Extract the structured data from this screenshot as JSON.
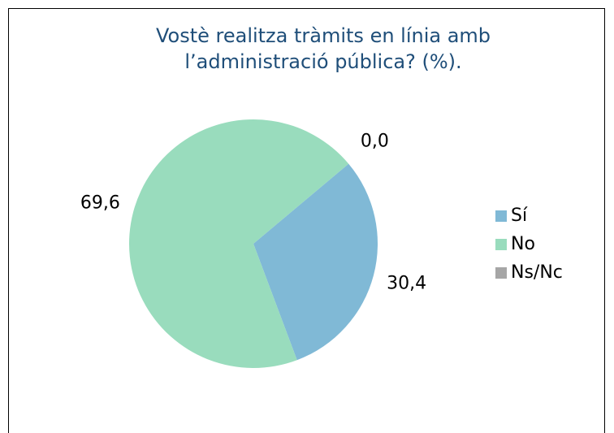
{
  "chart_data": {
    "type": "pie",
    "title": [
      "Vostè realitza tràmits en línia amb",
      "l’administració pública? (%)."
    ],
    "categories": [
      "Sí",
      "No",
      "Ns/Nc"
    ],
    "values": [
      30.4,
      69.6,
      0.0
    ],
    "value_labels": [
      "30,4",
      "69,6",
      "0,0"
    ],
    "colors": [
      "#80b9d6",
      "#99dcbd",
      "#a6a6a6"
    ],
    "legend": "right"
  }
}
